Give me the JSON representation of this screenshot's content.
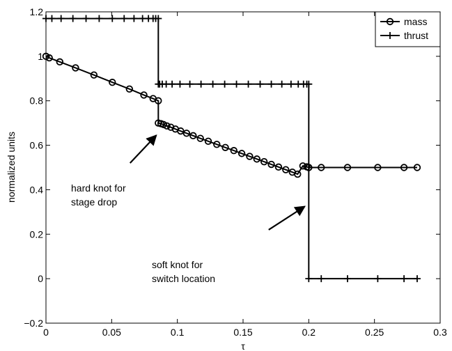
{
  "chart_data": {
    "type": "line",
    "xlabel": "τ",
    "ylabel": "normalized units",
    "xlim": [
      0,
      0.3
    ],
    "ylim": [
      -0.2,
      1.2
    ],
    "xticks": [
      0,
      0.05,
      0.1,
      0.15,
      0.2,
      0.25,
      0.3
    ],
    "xtick_labels": [
      "0",
      "0.05",
      "0.1",
      "0.15",
      "0.2",
      "0.25",
      "0.3"
    ],
    "yticks": [
      -0.2,
      0,
      0.2,
      0.4,
      0.6,
      0.8,
      1,
      1.2
    ],
    "ytick_labels": [
      "−0.2",
      "0",
      "0.2",
      "0.4",
      "0.6",
      "0.8",
      "1",
      "1.2"
    ],
    "grid": false,
    "legend_position": "top-right",
    "series": [
      {
        "name": "mass",
        "marker": "circle",
        "color": "#000000",
        "x": [
          0,
          0.0025,
          0.0105,
          0.0225,
          0.0365,
          0.0505,
          0.0635,
          0.0745,
          0.0815,
          0.0855,
          0.0855,
          0.0875,
          0.0895,
          0.092,
          0.095,
          0.0985,
          0.1025,
          0.107,
          0.112,
          0.1175,
          0.1235,
          0.13,
          0.1365,
          0.143,
          0.149,
          0.155,
          0.1605,
          0.166,
          0.1715,
          0.177,
          0.1825,
          0.1875,
          0.1915,
          0.1955,
          0.1985,
          0.2,
          0.2,
          0.2095,
          0.2295,
          0.2525,
          0.2725,
          0.2825
        ],
        "y": [
          1.0,
          0.993,
          0.975,
          0.948,
          0.916,
          0.883,
          0.853,
          0.826,
          0.81,
          0.8,
          0.7,
          0.697,
          0.693,
          0.687,
          0.681,
          0.673,
          0.664,
          0.654,
          0.643,
          0.631,
          0.618,
          0.604,
          0.59,
          0.576,
          0.563,
          0.55,
          0.538,
          0.526,
          0.514,
          0.502,
          0.49,
          0.479,
          0.47,
          0.507,
          0.503,
          0.5,
          0.5,
          0.5,
          0.5,
          0.5,
          0.5,
          0.5
        ]
      },
      {
        "name": "thrust",
        "marker": "plus",
        "color": "#000000",
        "x": [
          0,
          0.0855,
          0.0855,
          0.2,
          0.2,
          0.2825
        ],
        "y": [
          1.17,
          1.17,
          0.875,
          0.875,
          0.0,
          0.0
        ],
        "markers_x": [
          0,
          0.0045,
          0.0115,
          0.0205,
          0.0305,
          0.0405,
          0.0505,
          0.0595,
          0.067,
          0.0735,
          0.078,
          0.0815,
          0.0835,
          0.0855,
          0.0855,
          0.0865,
          0.0885,
          0.0915,
          0.096,
          0.102,
          0.1095,
          0.118,
          0.127,
          0.136,
          0.145,
          0.154,
          0.163,
          0.1715,
          0.1795,
          0.1865,
          0.192,
          0.196,
          0.1985,
          0.2,
          0.2,
          0.2095,
          0.2295,
          0.2525,
          0.2725,
          0.2825
        ],
        "markers_y": [
          1.17,
          1.17,
          1.17,
          1.17,
          1.17,
          1.17,
          1.17,
          1.17,
          1.17,
          1.17,
          1.17,
          1.17,
          1.17,
          1.17,
          0.875,
          0.875,
          0.875,
          0.875,
          0.875,
          0.875,
          0.875,
          0.875,
          0.875,
          0.875,
          0.875,
          0.875,
          0.875,
          0.875,
          0.875,
          0.875,
          0.875,
          0.875,
          0.875,
          0.875,
          0.0,
          0.0,
          0.0,
          0.0,
          0.0,
          0.0
        ]
      }
    ],
    "annotations": [
      {
        "lines": [
          "hard knot for",
          "stage drop"
        ],
        "arrow_from": [
          0.064,
          0.52
        ],
        "arrow_to": [
          0.084,
          0.645
        ]
      },
      {
        "lines": [
          "soft knot for",
          "switch location"
        ],
        "arrow_from": [
          0.1695,
          0.22
        ],
        "arrow_to": [
          0.197,
          0.325
        ]
      }
    ]
  }
}
